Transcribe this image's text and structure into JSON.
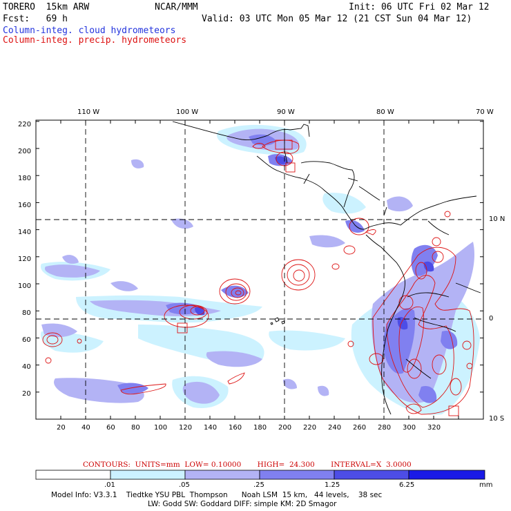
{
  "header": {
    "model": "TORERO  15km ARW",
    "org": "NCAR/MMM",
    "init": "Init: 06 UTC Fri 02 Mar 12",
    "fcst": "Fcst:   69 h",
    "valid": "Valid: 03 UTC Mon 05 Mar 12 (21 CST Sun 04 Mar 12)",
    "field1": "Column-integ. cloud hydrometeors",
    "field2": "Column-integ. precip. hydrometeors"
  },
  "colors": {
    "field1": "#2233dd",
    "field2": "#dd1111",
    "contour": "#dd1111",
    "shade": [
      "#ffffff",
      "#ccf2ff",
      "#b3b3f5",
      "#8080f0",
      "#4d4de6",
      "#1a1ae6"
    ]
  },
  "axes": {
    "top_lon": [
      "110 W",
      "100 W",
      "90 W",
      "80 W",
      "70 W"
    ],
    "right_lat": [
      "10 N",
      "0",
      "10 S"
    ],
    "y_grid": [
      "220",
      "200",
      "180",
      "160",
      "140",
      "120",
      "100",
      "80",
      "60",
      "40",
      "20"
    ],
    "x_grid": [
      "20",
      "40",
      "60",
      "80",
      "100",
      "120",
      "140",
      "160",
      "180",
      "200",
      "220",
      "240",
      "260",
      "280",
      "300",
      "320"
    ]
  },
  "colorbar": {
    "levels": [
      ".01",
      ".05",
      ".25",
      "1.25",
      "6.25"
    ],
    "unit": "mm"
  },
  "contours": {
    "label": "CONTOURS:  UNITS=mm  LOW= 0.10000       HIGH=  24.300       INTERVAL=X  3.0000"
  },
  "footer": {
    "line1": "Model Info: V3.3.1    Tiedtke YSU PBL  Thompson      Noah LSM  15 km,   44 levels,    38 sec",
    "line2": "LW: Godd SW: Goddard DIFF: simple KM: 2D Smagor"
  }
}
